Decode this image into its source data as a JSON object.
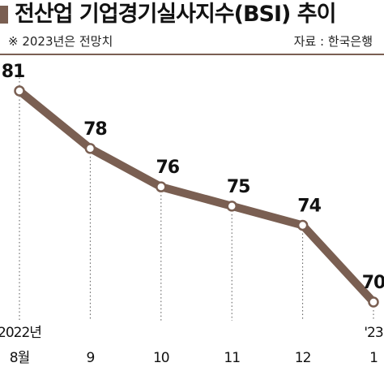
{
  "header": {
    "title": "전산업 기업경기실사지수(BSI) 추이",
    "note": "※ 2023년은 전망치",
    "source": "자료 : 한국은행"
  },
  "colors": {
    "accent": "#7a5f52",
    "line": "#7a5f52",
    "marker_fill": "#ffffff",
    "gridline": "#555555",
    "text": "#111111"
  },
  "chart_data": {
    "type": "line",
    "title": "전산업 기업경기실사지수(BSI) 추이",
    "categories": [
      [
        "2022년",
        "8월"
      ],
      [
        "",
        "9"
      ],
      [
        "",
        "10"
      ],
      [
        "",
        "11"
      ],
      [
        "",
        "12"
      ],
      [
        "'23",
        "1"
      ]
    ],
    "series": [
      {
        "values": [
          81,
          78,
          76,
          75,
          74,
          70
        ]
      }
    ],
    "data_labels": [
      "81",
      "78",
      "76",
      "75",
      "74",
      "70"
    ],
    "ylim": [
      68,
      82
    ],
    "grid": false,
    "vertical_guides": "dotted",
    "legend": "none"
  }
}
